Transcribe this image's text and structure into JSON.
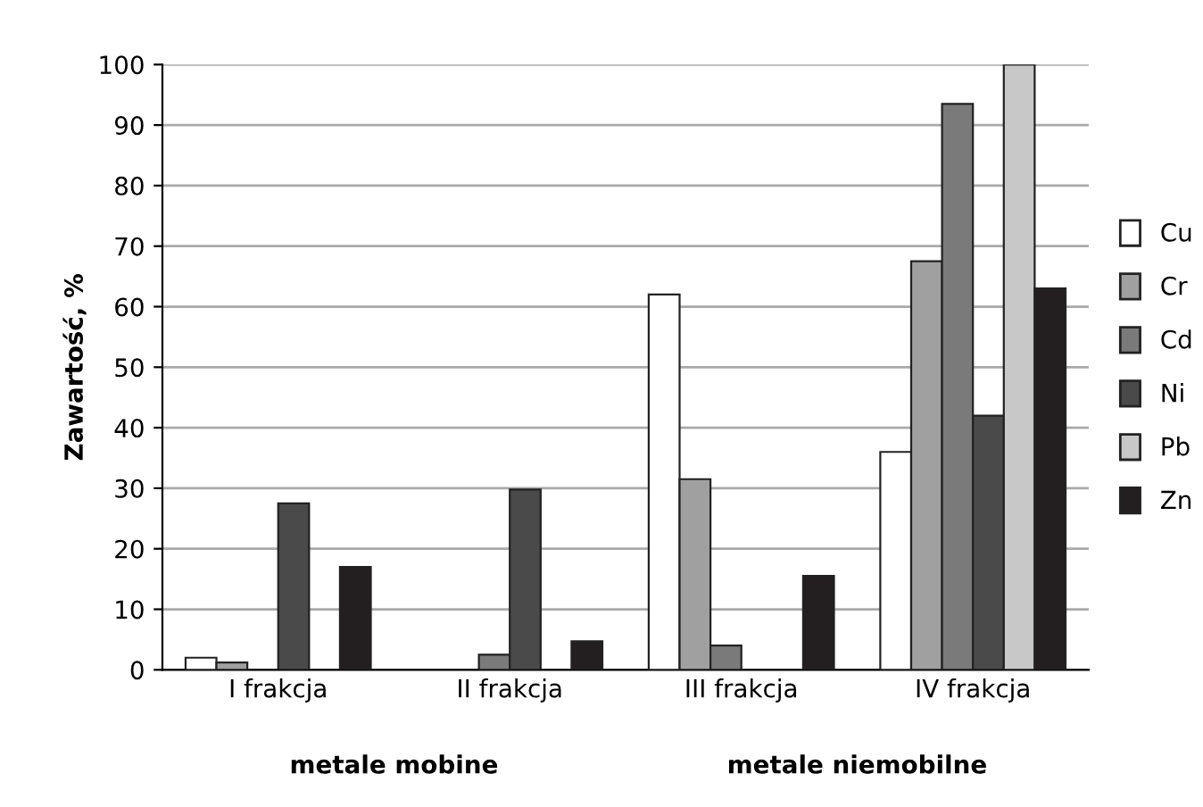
{
  "chart_data": {
    "type": "bar",
    "ylabel": "Zawartość, %",
    "categories": [
      "I frakcja",
      "II frakcja",
      "III frakcja",
      "IV frakcja"
    ],
    "series": [
      {
        "name": "Cu",
        "color": "#ffffff",
        "values": [
          2,
          null,
          62,
          36
        ]
      },
      {
        "name": "Cr",
        "color": "#a0a0a0",
        "values": [
          1.2,
          null,
          31.5,
          67.5
        ]
      },
      {
        "name": "Cd",
        "color": "#7a7a7a",
        "values": [
          null,
          2.5,
          4,
          93.5
        ]
      },
      {
        "name": "Ni",
        "color": "#4a4a4a",
        "values": [
          27.5,
          29.8,
          null,
          42
        ]
      },
      {
        "name": "Pb",
        "color": "#c8c8c8",
        "values": [
          null,
          null,
          null,
          100
        ]
      },
      {
        "name": "Zn",
        "color": "#231f20",
        "values": [
          17,
          4.7,
          15.5,
          63
        ]
      }
    ],
    "ylim": [
      0,
      100
    ],
    "yticks": [
      0,
      10,
      20,
      30,
      40,
      50,
      60,
      70,
      80,
      90,
      100
    ],
    "grid": "y",
    "legend": "right",
    "annotations": [
      "metale mobine",
      "metale niemobilne"
    ]
  }
}
